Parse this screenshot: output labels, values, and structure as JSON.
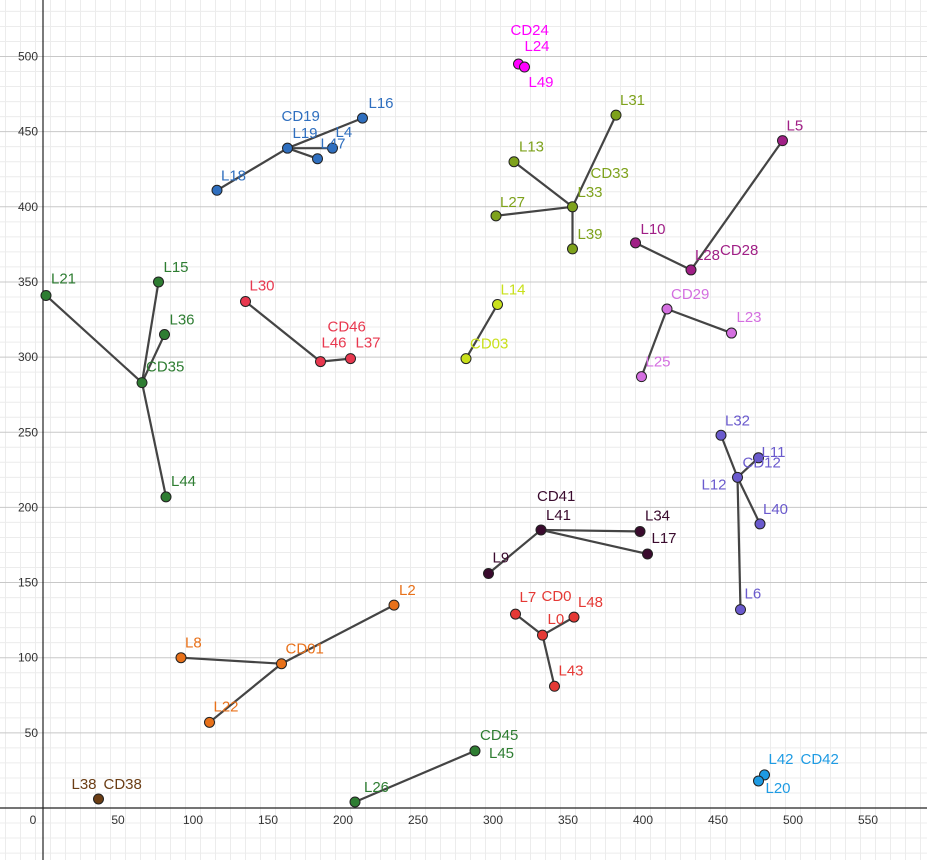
{
  "chart_data": {
    "type": "scatter",
    "title": "",
    "xlabel": "",
    "ylabel": "",
    "xlim": [
      -28,
      583
    ],
    "ylim": [
      -35,
      535
    ],
    "grid": true,
    "x_ticks": [
      0,
      50,
      100,
      150,
      200,
      250,
      300,
      350,
      400,
      450,
      500,
      550
    ],
    "y_ticks": [
      50,
      100,
      150,
      200,
      250,
      300,
      350,
      400,
      450,
      500
    ],
    "groups": [
      {
        "center": "CD19",
        "color": "#2f6fbf",
        "points": [
          {
            "name": "L19",
            "x": 163,
            "y": 439,
            "center": true
          },
          {
            "name": "L16",
            "x": 213,
            "y": 459
          },
          {
            "name": "L4",
            "x": 193,
            "y": 439
          },
          {
            "name": "L47",
            "x": 183,
            "y": 432
          },
          {
            "name": "L18",
            "x": 116,
            "y": 411
          }
        ]
      },
      {
        "center": "CD24",
        "color": "#ff00ff",
        "points": [
          {
            "name": "L24",
            "x": 317,
            "y": 495,
            "center": true
          },
          {
            "name": "L49",
            "x": 321,
            "y": 493
          }
        ]
      },
      {
        "center": "CD33",
        "color": "#7ea21c",
        "points": [
          {
            "name": "L33",
            "x": 353,
            "y": 400,
            "center": true
          },
          {
            "name": "L31",
            "x": 382,
            "y": 461
          },
          {
            "name": "L13",
            "x": 314,
            "y": 430
          },
          {
            "name": "L27",
            "x": 302,
            "y": 394
          },
          {
            "name": "L39",
            "x": 353,
            "y": 372
          }
        ]
      },
      {
        "center": "CD28",
        "color": "#a01f86",
        "points": [
          {
            "name": "L28",
            "x": 432,
            "y": 358,
            "center": true
          },
          {
            "name": "L5",
            "x": 493,
            "y": 444
          },
          {
            "name": "L10",
            "x": 395,
            "y": 376
          }
        ]
      },
      {
        "center": "CD35",
        "color": "#2e7d32",
        "points": [
          {
            "name": "CD35",
            "x": 66,
            "y": 283,
            "center": true,
            "show_label": true
          },
          {
            "name": "L21",
            "x": 2,
            "y": 341
          },
          {
            "name": "L15",
            "x": 77,
            "y": 350
          },
          {
            "name": "L36",
            "x": 81,
            "y": 315
          },
          {
            "name": "L44",
            "x": 82,
            "y": 207
          }
        ]
      },
      {
        "center": "CD46",
        "color": "#e8384f",
        "points": [
          {
            "name": "L46",
            "x": 185,
            "y": 297,
            "center": true
          },
          {
            "name": "L30",
            "x": 135,
            "y": 337
          },
          {
            "name": "L37",
            "x": 205,
            "y": 299
          }
        ]
      },
      {
        "center": "CD03",
        "color": "#c9e01b",
        "points": [
          {
            "name": "CD03",
            "x": 282,
            "y": 299,
            "center": true,
            "show_label": true
          },
          {
            "name": "L14",
            "x": 303,
            "y": 335
          }
        ]
      },
      {
        "center": "CD29",
        "color": "#d46fe0",
        "points": [
          {
            "name": "CD29",
            "x": 416,
            "y": 332,
            "center": true,
            "show_label": true
          },
          {
            "name": "L23",
            "x": 459,
            "y": 316
          },
          {
            "name": "L25",
            "x": 399,
            "y": 287
          }
        ]
      },
      {
        "center": "CD12",
        "color": "#6a5acd",
        "points": [
          {
            "name": "L12",
            "x": 463,
            "y": 220,
            "center": true
          },
          {
            "name": "L32",
            "x": 452,
            "y": 248
          },
          {
            "name": "L11",
            "x": 477,
            "y": 233
          },
          {
            "name": "L40",
            "x": 478,
            "y": 189
          },
          {
            "name": "L6",
            "x": 465,
            "y": 132
          }
        ]
      },
      {
        "center": "CD41",
        "color": "#3a0b2e",
        "points": [
          {
            "name": "L41",
            "x": 332,
            "y": 185,
            "center": true
          },
          {
            "name": "L34",
            "x": 398,
            "y": 184
          },
          {
            "name": "L17",
            "x": 403,
            "y": 169
          },
          {
            "name": "L9",
            "x": 297,
            "y": 156
          }
        ]
      },
      {
        "center": "CD0",
        "color": "#e53935",
        "points": [
          {
            "name": "L0",
            "x": 333,
            "y": 115,
            "center": true
          },
          {
            "name": "L7",
            "x": 315,
            "y": 129
          },
          {
            "name": "L48",
            "x": 354,
            "y": 127
          },
          {
            "name": "L43",
            "x": 341,
            "y": 81
          }
        ]
      },
      {
        "center": "CD01",
        "color": "#e8711a",
        "points": [
          {
            "name": "CD01",
            "x": 159,
            "y": 96,
            "center": true,
            "show_label": true
          },
          {
            "name": "L2",
            "x": 234,
            "y": 135
          },
          {
            "name": "L8",
            "x": 92,
            "y": 100
          },
          {
            "name": "L22",
            "x": 111,
            "y": 57
          }
        ]
      },
      {
        "center": "CD45",
        "color": "#2e7d32",
        "points": [
          {
            "name": "L45",
            "x": 288,
            "y": 38,
            "center": true
          },
          {
            "name": "L26",
            "x": 208,
            "y": 4
          }
        ]
      },
      {
        "center": "CD42",
        "color": "#1e9be3",
        "points": [
          {
            "name": "L42",
            "x": 481,
            "y": 22,
            "center": true
          },
          {
            "name": "L20",
            "x": 477,
            "y": 18
          }
        ]
      },
      {
        "center": "CD38",
        "color": "#6b3d14",
        "points": [
          {
            "name": "L38",
            "x": 37,
            "y": 6,
            "center": true
          }
        ]
      }
    ],
    "text_labels": [
      {
        "text": "CD19",
        "color": "#2f6fbf",
        "x": 163,
        "y": 439,
        "dx": -6,
        "dy": -27
      },
      {
        "text": "L19",
        "color": "#2f6fbf",
        "x": 163,
        "y": 439,
        "dx": 5,
        "dy": -10
      },
      {
        "text": "L16",
        "color": "#2f6fbf",
        "x": 213,
        "y": 459,
        "dx": 6,
        "dy": -10
      },
      {
        "text": "L4",
        "color": "#2f6fbf",
        "x": 193,
        "y": 439,
        "dx": 3,
        "dy": -11
      },
      {
        "text": "L47",
        "color": "#2f6fbf",
        "x": 183,
        "y": 432,
        "dx": 3,
        "dy": -10
      },
      {
        "text": "L18",
        "color": "#2f6fbf",
        "x": 116,
        "y": 411,
        "dx": 4,
        "dy": -10
      },
      {
        "text": "CD24",
        "color": "#ff00ff",
        "x": 317,
        "y": 495,
        "dx": -8,
        "dy": -29
      },
      {
        "text": "L24",
        "color": "#ff00ff",
        "x": 317,
        "y": 495,
        "dx": 6,
        "dy": -13
      },
      {
        "text": "L49",
        "color": "#ff00ff",
        "x": 321,
        "y": 493,
        "dx": 4,
        "dy": 20
      },
      {
        "text": "L31",
        "color": "#7ea21c",
        "x": 382,
        "y": 461,
        "dx": 4,
        "dy": -10
      },
      {
        "text": "L13",
        "color": "#7ea21c",
        "x": 314,
        "y": 430,
        "dx": 5,
        "dy": -10
      },
      {
        "text": "CD33",
        "color": "#7ea21c",
        "x": 353,
        "y": 400,
        "dx": 18,
        "dy": -29
      },
      {
        "text": "L33",
        "color": "#7ea21c",
        "x": 353,
        "y": 400,
        "dx": 5,
        "dy": -10
      },
      {
        "text": "L27",
        "color": "#7ea21c",
        "x": 302,
        "y": 394,
        "dx": 4,
        "dy": -9
      },
      {
        "text": "L39",
        "color": "#7ea21c",
        "x": 353,
        "y": 372,
        "dx": 5,
        "dy": -10
      },
      {
        "text": "L5",
        "color": "#a01f86",
        "x": 493,
        "y": 444,
        "dx": 4,
        "dy": -10
      },
      {
        "text": "L10",
        "color": "#a01f86",
        "x": 395,
        "y": 376,
        "dx": 5,
        "dy": -9
      },
      {
        "text": "L28",
        "color": "#a01f86",
        "x": 432,
        "y": 358,
        "dx": 4,
        "dy": -10
      },
      {
        "text": "CD28",
        "color": "#a01f86",
        "x": 432,
        "y": 358,
        "dx": 29,
        "dy": -15
      },
      {
        "text": "L21",
        "color": "#2e7d32",
        "x": 2,
        "y": 341,
        "dx": 5,
        "dy": -12
      },
      {
        "text": "L15",
        "color": "#2e7d32",
        "x": 77,
        "y": 350,
        "dx": 5,
        "dy": -10
      },
      {
        "text": "L36",
        "color": "#2e7d32",
        "x": 81,
        "y": 315,
        "dx": 5,
        "dy": -10
      },
      {
        "text": "CD35",
        "color": "#2e7d32",
        "x": 66,
        "y": 283,
        "dx": 4,
        "dy": -11
      },
      {
        "text": "L44",
        "color": "#2e7d32",
        "x": 82,
        "y": 207,
        "dx": 5,
        "dy": -11
      },
      {
        "text": "L30",
        "color": "#e8384f",
        "x": 135,
        "y": 337,
        "dx": 4,
        "dy": -11
      },
      {
        "text": "CD46",
        "color": "#e8384f",
        "x": 185,
        "y": 297,
        "dx": 7,
        "dy": -30
      },
      {
        "text": "L46",
        "color": "#e8384f",
        "x": 185,
        "y": 297,
        "dx": 1,
        "dy": -14
      },
      {
        "text": "L37",
        "color": "#e8384f",
        "x": 205,
        "y": 299,
        "dx": 5,
        "dy": -11
      },
      {
        "text": "L14",
        "color": "#c9e01b",
        "x": 303,
        "y": 335,
        "dx": 3,
        "dy": -10
      },
      {
        "text": "CD03",
        "color": "#c9e01b",
        "x": 282,
        "y": 299,
        "dx": 4,
        "dy": -10
      },
      {
        "text": "CD29",
        "color": "#d46fe0",
        "x": 416,
        "y": 332,
        "dx": 4,
        "dy": -10
      },
      {
        "text": "L23",
        "color": "#d46fe0",
        "x": 459,
        "y": 316,
        "dx": 5,
        "dy": -11
      },
      {
        "text": "L25",
        "color": "#d46fe0",
        "x": 399,
        "y": 287,
        "dx": 4,
        "dy": -10
      },
      {
        "text": "L32",
        "color": "#6a5acd",
        "x": 452,
        "y": 248,
        "dx": 4,
        "dy": -10
      },
      {
        "text": "L11",
        "color": "#6a5acd",
        "x": 477,
        "y": 233,
        "dx": 3,
        "dy": -1
      },
      {
        "text": "CD12",
        "color": "#6a5acd",
        "x": 463,
        "y": 220,
        "dx": 5,
        "dy": -10
      },
      {
        "text": "L12",
        "color": "#6a5acd",
        "x": 463,
        "y": 220,
        "dx": -36,
        "dy": 12
      },
      {
        "text": "L40",
        "color": "#6a5acd",
        "x": 478,
        "y": 189,
        "dx": 3,
        "dy": -10
      },
      {
        "text": "L6",
        "color": "#6a5acd",
        "x": 465,
        "y": 132,
        "dx": 4,
        "dy": -11
      },
      {
        "text": "CD41",
        "color": "#3a0b2e",
        "x": 332,
        "y": 185,
        "dx": -4,
        "dy": -29
      },
      {
        "text": "L41",
        "color": "#3a0b2e",
        "x": 332,
        "y": 185,
        "dx": 5,
        "dy": -10
      },
      {
        "text": "L34",
        "color": "#3a0b2e",
        "x": 398,
        "y": 184,
        "dx": 5,
        "dy": -11
      },
      {
        "text": "L17",
        "color": "#3a0b2e",
        "x": 403,
        "y": 169,
        "dx": 4,
        "dy": -11
      },
      {
        "text": "L9",
        "color": "#3a0b2e",
        "x": 297,
        "y": 156,
        "dx": 4,
        "dy": -11
      },
      {
        "text": "L7",
        "color": "#e53935",
        "x": 315,
        "y": 129,
        "dx": 4,
        "dy": -12
      },
      {
        "text": "CD0",
        "color": "#e53935",
        "x": 333,
        "y": 115,
        "dx": -1,
        "dy": -34
      },
      {
        "text": "L48",
        "color": "#e53935",
        "x": 354,
        "y": 127,
        "dx": 4,
        "dy": -10
      },
      {
        "text": "L0",
        "color": "#e53935",
        "x": 333,
        "y": 115,
        "dx": 5,
        "dy": -11
      },
      {
        "text": "L43",
        "color": "#e53935",
        "x": 341,
        "y": 81,
        "dx": 4,
        "dy": -11
      },
      {
        "text": "L2",
        "color": "#e8711a",
        "x": 234,
        "y": 135,
        "dx": 5,
        "dy": -10
      },
      {
        "text": "L8",
        "color": "#e8711a",
        "x": 92,
        "y": 100,
        "dx": 4,
        "dy": -10
      },
      {
        "text": "CD01",
        "color": "#e8711a",
        "x": 159,
        "y": 96,
        "dx": 4,
        "dy": -10
      },
      {
        "text": "L22",
        "color": "#e8711a",
        "x": 111,
        "y": 57,
        "dx": 4,
        "dy": -11
      },
      {
        "text": "CD45",
        "color": "#2e7d32",
        "x": 288,
        "y": 38,
        "dx": 5,
        "dy": -11
      },
      {
        "text": "L45",
        "color": "#2e7d32",
        "x": 288,
        "y": 38,
        "dx": 14,
        "dy": 7
      },
      {
        "text": "L26",
        "color": "#2e7d32",
        "x": 208,
        "y": 4,
        "dx": 9,
        "dy": -10
      },
      {
        "text": "L42",
        "color": "#1e9be3",
        "x": 481,
        "y": 22,
        "dx": 4,
        "dy": -11
      },
      {
        "text": "CD42",
        "color": "#1e9be3",
        "x": 481,
        "y": 22,
        "dx": 36,
        "dy": -11
      },
      {
        "text": "L20",
        "color": "#1e9be3",
        "x": 477,
        "y": 18,
        "dx": 7,
        "dy": 12
      },
      {
        "text": "L38",
        "color": "#6b3d14",
        "x": 37,
        "y": 6,
        "dx": -27,
        "dy": -10
      },
      {
        "text": "CD38",
        "color": "#6b3d14",
        "x": 37,
        "y": 6,
        "dx": 5,
        "dy": -10
      }
    ]
  }
}
